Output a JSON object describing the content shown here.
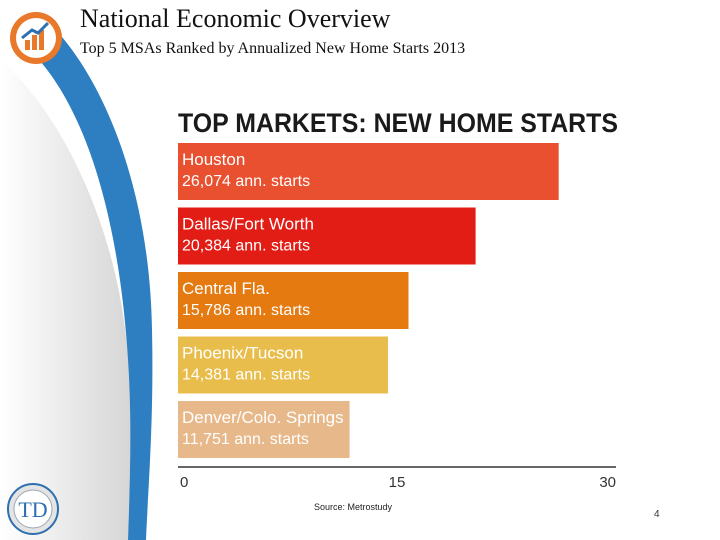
{
  "slide": {
    "title": "National Economic Overview",
    "subtitle": "Top 5 MSAs Ranked by Annualized  New Home Starts 2013",
    "source": "Source: Metrostudy",
    "page_number": "4",
    "logo_text": "TD"
  },
  "colors": {
    "swoosh": "#2e7fc1",
    "logo_orange": "#e8782a",
    "logo_blue": "#2e6fb0"
  },
  "chart_data": {
    "type": "bar",
    "orientation": "horizontal",
    "title": "TOP MARKETS: NEW HOME STARTS",
    "categories": [
      "Houston",
      "Dallas/Fort Worth",
      "Central Fla.",
      "Phoenix/Tucson",
      "Denver/Colo. Springs"
    ],
    "values": [
      26074,
      20384,
      15786,
      14381,
      11751
    ],
    "value_labels": [
      "26,074 ann. starts",
      "20,384 ann. starts",
      "15,786 ann. starts",
      "14,381 ann. starts",
      "11,751 ann. starts"
    ],
    "colors": [
      "#e8502f",
      "#e21d15",
      "#e57a11",
      "#e8bd4c",
      "#e7b88a"
    ],
    "xlim": [
      0,
      30000
    ],
    "xticks": [
      "0",
      "15",
      "30"
    ],
    "grid": false
  }
}
